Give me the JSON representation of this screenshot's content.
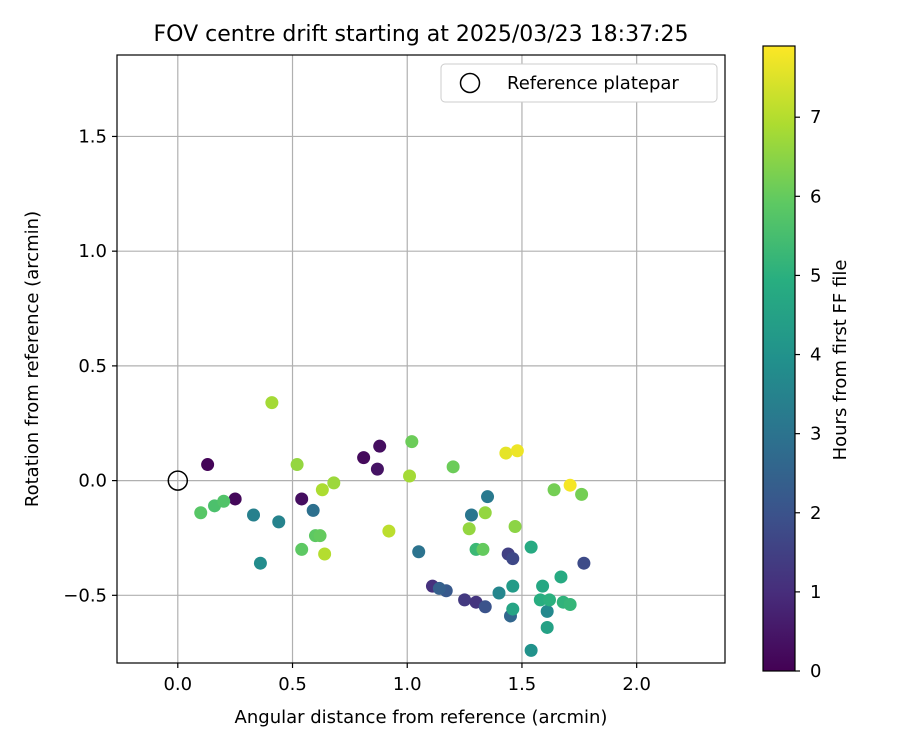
{
  "chart_data": {
    "type": "scatter",
    "title": "FOV centre drift starting at 2025/03/23 18:37:25",
    "xlabel": "Angular distance from reference (arcmin)",
    "ylabel": "Rotation from reference (arcmin)",
    "xlim": [
      -0.265,
      2.385
    ],
    "ylim": [
      -0.795,
      1.855
    ],
    "xticks": [
      0.0,
      0.5,
      1.0,
      1.5,
      2.0
    ],
    "xtick_labels": [
      "0.0",
      "0.5",
      "1.0",
      "1.5",
      "2.0"
    ],
    "yticks": [
      -0.5,
      0.0,
      0.5,
      1.0,
      1.5
    ],
    "ytick_labels": [
      "−0.5",
      "0.0",
      "0.5",
      "1.0",
      "1.5"
    ],
    "grid": true,
    "legend": {
      "placement": "top-right",
      "entries": [
        {
          "label": "Reference platepar",
          "marker": "open-circle"
        }
      ]
    },
    "reference_point": {
      "x": 0.0,
      "y": 0.0
    },
    "colorbar": {
      "label": "Hours from first FF file",
      "colormap": "viridis",
      "range": [
        0,
        7.9
      ],
      "ticks": [
        0,
        1,
        2,
        3,
        4,
        5,
        6,
        7
      ],
      "tick_labels": [
        "0",
        "1",
        "2",
        "3",
        "4",
        "5",
        "6",
        "7"
      ]
    },
    "series": [
      {
        "points": [
          {
            "x": 0.13,
            "y": 0.07,
            "t": 0.1
          },
          {
            "x": 0.25,
            "y": -0.08,
            "t": 0.15
          },
          {
            "x": 0.54,
            "y": -0.08,
            "t": 0.3
          },
          {
            "x": 0.81,
            "y": 0.1,
            "t": 0.2
          },
          {
            "x": 0.87,
            "y": 0.05,
            "t": 0.4
          },
          {
            "x": 0.88,
            "y": 0.15,
            "t": 0.3
          },
          {
            "x": 1.11,
            "y": -0.46,
            "t": 1.1
          },
          {
            "x": 1.25,
            "y": -0.52,
            "t": 1.3
          },
          {
            "x": 1.3,
            "y": -0.53,
            "t": 1.2
          },
          {
            "x": 1.44,
            "y": -0.32,
            "t": 1.5
          },
          {
            "x": 1.46,
            "y": -0.34,
            "t": 1.7
          },
          {
            "x": 1.77,
            "y": -0.36,
            "t": 1.8
          },
          {
            "x": 1.34,
            "y": -0.55,
            "t": 2.0
          },
          {
            "x": 1.17,
            "y": -0.48,
            "t": 2.2
          },
          {
            "x": 1.14,
            "y": -0.47,
            "t": 2.4
          },
          {
            "x": 1.45,
            "y": -0.59,
            "t": 2.6
          },
          {
            "x": 0.59,
            "y": -0.13,
            "t": 2.9
          },
          {
            "x": 1.05,
            "y": -0.31,
            "t": 3.0
          },
          {
            "x": 1.28,
            "y": -0.15,
            "t": 3.1
          },
          {
            "x": 1.35,
            "y": -0.07,
            "t": 3.2
          },
          {
            "x": 0.33,
            "y": -0.15,
            "t": 3.4
          },
          {
            "x": 0.44,
            "y": -0.18,
            "t": 3.5
          },
          {
            "x": 1.4,
            "y": -0.49,
            "t": 3.6
          },
          {
            "x": 1.61,
            "y": -0.57,
            "t": 3.7
          },
          {
            "x": 0.36,
            "y": -0.36,
            "t": 3.8
          },
          {
            "x": 1.54,
            "y": -0.74,
            "t": 4.0
          },
          {
            "x": 1.46,
            "y": -0.46,
            "t": 4.3
          },
          {
            "x": 1.61,
            "y": -0.64,
            "t": 4.5
          },
          {
            "x": 1.46,
            "y": -0.56,
            "t": 4.6
          },
          {
            "x": 1.59,
            "y": -0.46,
            "t": 4.7
          },
          {
            "x": 1.67,
            "y": -0.42,
            "t": 4.8
          },
          {
            "x": 1.54,
            "y": -0.29,
            "t": 4.8
          },
          {
            "x": 1.58,
            "y": -0.52,
            "t": 4.9
          },
          {
            "x": 1.62,
            "y": -0.52,
            "t": 5.0
          },
          {
            "x": 1.68,
            "y": -0.53,
            "t": 5.1
          },
          {
            "x": 1.71,
            "y": -0.54,
            "t": 5.2
          },
          {
            "x": 1.3,
            "y": -0.3,
            "t": 5.3
          },
          {
            "x": 0.16,
            "y": -0.11,
            "t": 5.6
          },
          {
            "x": 0.2,
            "y": -0.09,
            "t": 5.7
          },
          {
            "x": 0.1,
            "y": -0.14,
            "t": 5.8
          },
          {
            "x": 0.54,
            "y": -0.3,
            "t": 5.9
          },
          {
            "x": 0.6,
            "y": -0.24,
            "t": 5.9
          },
          {
            "x": 0.62,
            "y": -0.24,
            "t": 6.0
          },
          {
            "x": 1.33,
            "y": -0.3,
            "t": 6.0
          },
          {
            "x": 1.02,
            "y": 0.17,
            "t": 6.1
          },
          {
            "x": 1.2,
            "y": 0.06,
            "t": 6.1
          },
          {
            "x": 1.64,
            "y": -0.04,
            "t": 6.2
          },
          {
            "x": 1.76,
            "y": -0.06,
            "t": 6.2
          },
          {
            "x": 1.47,
            "y": -0.2,
            "t": 6.5
          },
          {
            "x": 1.34,
            "y": -0.14,
            "t": 6.6
          },
          {
            "x": 1.27,
            "y": -0.21,
            "t": 6.6
          },
          {
            "x": 0.52,
            "y": 0.07,
            "t": 6.6
          },
          {
            "x": 0.68,
            "y": -0.01,
            "t": 6.7
          },
          {
            "x": 0.41,
            "y": 0.34,
            "t": 6.8
          },
          {
            "x": 1.01,
            "y": 0.02,
            "t": 6.8
          },
          {
            "x": 0.63,
            "y": -0.04,
            "t": 6.9
          },
          {
            "x": 0.64,
            "y": -0.32,
            "t": 7.0
          },
          {
            "x": 0.92,
            "y": -0.22,
            "t": 7.1
          },
          {
            "x": 1.43,
            "y": 0.12,
            "t": 7.6
          },
          {
            "x": 1.48,
            "y": 0.13,
            "t": 7.7
          },
          {
            "x": 1.71,
            "y": -0.02,
            "t": 7.8
          }
        ]
      }
    ]
  }
}
